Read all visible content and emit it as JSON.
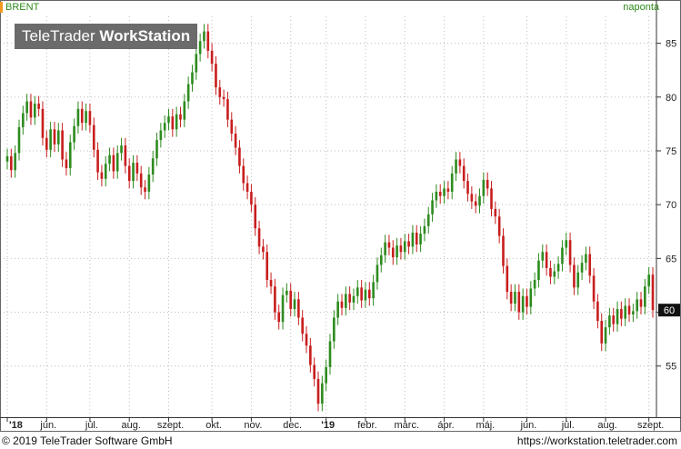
{
  "chart_data": {
    "type": "candlestick",
    "symbol": "BRENT",
    "period": "naponta",
    "watermark": {
      "light": "TeleTrader",
      "bold": "WorkStation"
    },
    "y_ticks": [
      55,
      60,
      65,
      70,
      75,
      80,
      85
    ],
    "ylim": [
      50.5,
      87.5
    ],
    "last_value": "60",
    "last_price": 60.2,
    "x_tick_labels": [
      "'18",
      "jún.",
      "júl.",
      "aug.",
      "szept.",
      "okt.",
      "nov.",
      "dec.",
      "'19",
      "febr.",
      "márc.",
      "ápr.",
      "máj.",
      "jún.",
      "júl.",
      "aug.",
      "szept."
    ],
    "x_ticks": [
      0,
      10,
      21,
      31,
      41,
      52,
      62,
      72,
      81,
      91,
      101,
      111,
      121,
      132,
      142,
      152,
      163
    ],
    "up_color": "#2e8b1f",
    "down_color": "#c81e1e",
    "series": [
      {
        "x": 0,
        "close": 74.5
      },
      {
        "x": 1,
        "close": 73.2
      },
      {
        "x": 2,
        "close": 74.8
      },
      {
        "x": 3,
        "close": 77.2
      },
      {
        "x": 4,
        "close": 78.5
      },
      {
        "x": 5,
        "close": 79.6
      },
      {
        "x": 6,
        "close": 78.1
      },
      {
        "x": 7,
        "close": 79.4
      },
      {
        "x": 8,
        "close": 78.9
      },
      {
        "x": 9,
        "close": 76.2
      },
      {
        "x": 10,
        "close": 75.1
      },
      {
        "x": 11,
        "close": 77.0
      },
      {
        "x": 12,
        "close": 75.6
      },
      {
        "x": 13,
        "close": 76.9
      },
      {
        "x": 14,
        "close": 74.2
      },
      {
        "x": 15,
        "close": 73.4
      },
      {
        "x": 16,
        "close": 75.8
      },
      {
        "x": 17,
        "close": 77.3
      },
      {
        "x": 18,
        "close": 78.9
      },
      {
        "x": 19,
        "close": 77.6
      },
      {
        "x": 20,
        "close": 78.7
      },
      {
        "x": 21,
        "close": 77.4
      },
      {
        "x": 22,
        "close": 75.1
      },
      {
        "x": 23,
        "close": 73.0
      },
      {
        "x": 24,
        "close": 72.4
      },
      {
        "x": 25,
        "close": 73.8
      },
      {
        "x": 26,
        "close": 74.6
      },
      {
        "x": 27,
        "close": 73.1
      },
      {
        "x": 28,
        "close": 74.8
      },
      {
        "x": 29,
        "close": 75.5
      },
      {
        "x": 30,
        "close": 73.6
      },
      {
        "x": 31,
        "close": 72.2
      },
      {
        "x": 32,
        "close": 73.9
      },
      {
        "x": 33,
        "close": 72.9
      },
      {
        "x": 34,
        "close": 71.6
      },
      {
        "x": 35,
        "close": 71.2
      },
      {
        "x": 36,
        "close": 72.8
      },
      {
        "x": 37,
        "close": 74.3
      },
      {
        "x": 38,
        "close": 76.0
      },
      {
        "x": 39,
        "close": 76.9
      },
      {
        "x": 40,
        "close": 77.6
      },
      {
        "x": 41,
        "close": 78.2
      },
      {
        "x": 42,
        "close": 77.0
      },
      {
        "x": 43,
        "close": 78.4
      },
      {
        "x": 44,
        "close": 77.9
      },
      {
        "x": 45,
        "close": 79.6
      },
      {
        "x": 46,
        "close": 81.2
      },
      {
        "x": 47,
        "close": 82.3
      },
      {
        "x": 48,
        "close": 84.0
      },
      {
        "x": 49,
        "close": 85.2
      },
      {
        "x": 50,
        "close": 86.1
      },
      {
        "x": 51,
        "close": 84.3
      },
      {
        "x": 52,
        "close": 83.1
      },
      {
        "x": 53,
        "close": 80.9
      },
      {
        "x": 54,
        "close": 80.0
      },
      {
        "x": 55,
        "close": 79.8
      },
      {
        "x": 56,
        "close": 77.9
      },
      {
        "x": 57,
        "close": 76.6
      },
      {
        "x": 58,
        "close": 75.3
      },
      {
        "x": 59,
        "close": 73.6
      },
      {
        "x": 60,
        "close": 72.0
      },
      {
        "x": 61,
        "close": 71.2
      },
      {
        "x": 62,
        "close": 70.0
      },
      {
        "x": 63,
        "close": 67.8
      },
      {
        "x": 64,
        "close": 66.1
      },
      {
        "x": 65,
        "close": 65.6
      },
      {
        "x": 66,
        "close": 63.0
      },
      {
        "x": 67,
        "close": 62.4
      },
      {
        "x": 68,
        "close": 60.0
      },
      {
        "x": 69,
        "close": 59.1
      },
      {
        "x": 70,
        "close": 61.6
      },
      {
        "x": 71,
        "close": 62.0
      },
      {
        "x": 72,
        "close": 60.3
      },
      {
        "x": 73,
        "close": 61.2
      },
      {
        "x": 74,
        "close": 59.5
      },
      {
        "x": 75,
        "close": 58.0
      },
      {
        "x": 76,
        "close": 56.9
      },
      {
        "x": 77,
        "close": 55.1
      },
      {
        "x": 78,
        "close": 53.8
      },
      {
        "x": 79,
        "close": 51.5
      },
      {
        "x": 80,
        "close": 53.4
      },
      {
        "x": 81,
        "close": 54.9
      },
      {
        "x": 82,
        "close": 57.3
      },
      {
        "x": 83,
        "close": 59.5
      },
      {
        "x": 84,
        "close": 61.0
      },
      {
        "x": 85,
        "close": 60.4
      },
      {
        "x": 86,
        "close": 61.7
      },
      {
        "x": 87,
        "close": 60.9
      },
      {
        "x": 88,
        "close": 61.5
      },
      {
        "x": 89,
        "close": 62.3
      },
      {
        "x": 90,
        "close": 61.1
      },
      {
        "x": 91,
        "close": 62.1
      },
      {
        "x": 92,
        "close": 61.3
      },
      {
        "x": 93,
        "close": 62.8
      },
      {
        "x": 94,
        "close": 64.4
      },
      {
        "x": 95,
        "close": 65.3
      },
      {
        "x": 96,
        "close": 66.5
      },
      {
        "x": 97,
        "close": 66.0
      },
      {
        "x": 98,
        "close": 65.1
      },
      {
        "x": 99,
        "close": 66.2
      },
      {
        "x": 100,
        "close": 65.6
      },
      {
        "x": 101,
        "close": 66.6
      },
      {
        "x": 102,
        "close": 66.1
      },
      {
        "x": 103,
        "close": 67.4
      },
      {
        "x": 104,
        "close": 66.3
      },
      {
        "x": 105,
        "close": 67.3
      },
      {
        "x": 106,
        "close": 68.0
      },
      {
        "x": 107,
        "close": 69.1
      },
      {
        "x": 108,
        "close": 70.4
      },
      {
        "x": 109,
        "close": 71.2
      },
      {
        "x": 110,
        "close": 70.8
      },
      {
        "x": 111,
        "close": 71.5
      },
      {
        "x": 112,
        "close": 71.2
      },
      {
        "x": 113,
        "close": 72.9
      },
      {
        "x": 114,
        "close": 74.2
      },
      {
        "x": 115,
        "close": 73.6
      },
      {
        "x": 116,
        "close": 72.2
      },
      {
        "x": 117,
        "close": 71.0
      },
      {
        "x": 118,
        "close": 70.3
      },
      {
        "x": 119,
        "close": 69.9
      },
      {
        "x": 120,
        "close": 70.8
      },
      {
        "x": 121,
        "close": 72.3
      },
      {
        "x": 122,
        "close": 71.5
      },
      {
        "x": 123,
        "close": 69.6
      },
      {
        "x": 124,
        "close": 68.9
      },
      {
        "x": 125,
        "close": 67.1
      },
      {
        "x": 126,
        "close": 64.3
      },
      {
        "x": 127,
        "close": 61.9
      },
      {
        "x": 128,
        "close": 60.8
      },
      {
        "x": 129,
        "close": 61.9
      },
      {
        "x": 130,
        "close": 60.0
      },
      {
        "x": 131,
        "close": 61.5
      },
      {
        "x": 132,
        "close": 60.5
      },
      {
        "x": 133,
        "close": 62.2
      },
      {
        "x": 134,
        "close": 63.0
      },
      {
        "x": 135,
        "close": 64.8
      },
      {
        "x": 136,
        "close": 65.6
      },
      {
        "x": 137,
        "close": 64.1
      },
      {
        "x": 138,
        "close": 63.3
      },
      {
        "x": 139,
        "close": 63.8
      },
      {
        "x": 140,
        "close": 64.5
      },
      {
        "x": 141,
        "close": 66.0
      },
      {
        "x": 142,
        "close": 66.7
      },
      {
        "x": 143,
        "close": 64.4
      },
      {
        "x": 144,
        "close": 62.3
      },
      {
        "x": 145,
        "close": 63.7
      },
      {
        "x": 146,
        "close": 64.6
      },
      {
        "x": 147,
        "close": 65.4
      },
      {
        "x": 148,
        "close": 63.4
      },
      {
        "x": 149,
        "close": 61.0
      },
      {
        "x": 150,
        "close": 59.2
      },
      {
        "x": 151,
        "close": 57.1
      },
      {
        "x": 152,
        "close": 58.6
      },
      {
        "x": 153,
        "close": 59.7
      },
      {
        "x": 154,
        "close": 58.9
      },
      {
        "x": 155,
        "close": 60.3
      },
      {
        "x": 156,
        "close": 59.4
      },
      {
        "x": 157,
        "close": 60.6
      },
      {
        "x": 158,
        "close": 59.8
      },
      {
        "x": 159,
        "close": 60.1
      },
      {
        "x": 160,
        "close": 61.2
      },
      {
        "x": 161,
        "close": 60.5
      },
      {
        "x": 162,
        "close": 62.4
      },
      {
        "x": 163,
        "close": 63.5
      },
      {
        "x": 164,
        "close": 60.2
      }
    ]
  },
  "footer": {
    "copyright": "© 2019 TeleTrader Software GmbH",
    "url": "https://workstation.teletrader.com"
  }
}
